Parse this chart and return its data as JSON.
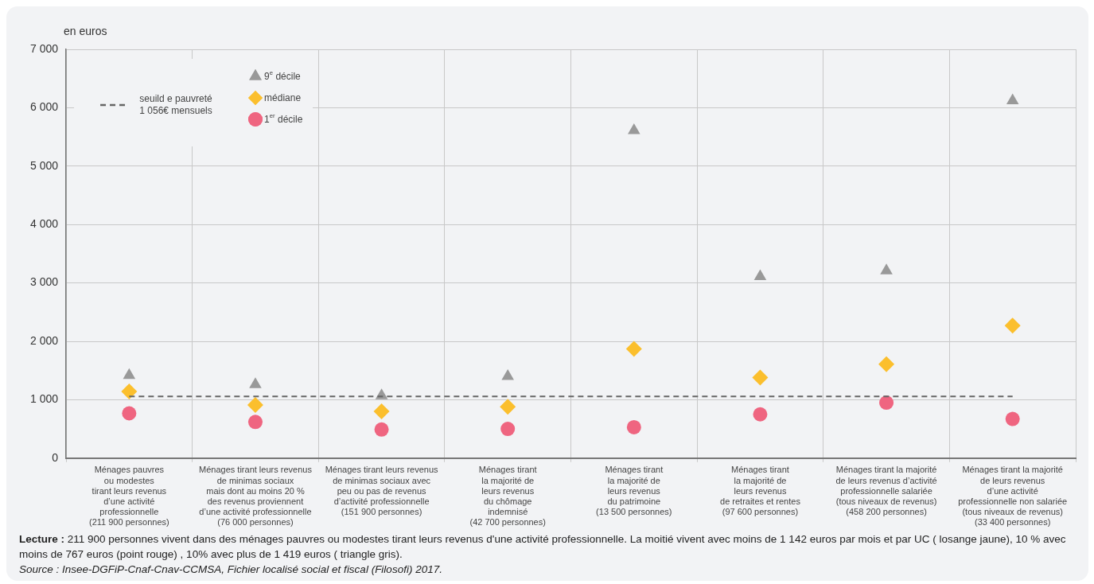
{
  "chart_data": {
    "type": "scatter",
    "ylabel": "en euros",
    "categories": [
      "Ménages pauvres\nou modestes\ntirant leurs revenus\nd’une activité\nprofessionnelle\n(211 900 personnes)",
      "Ménages tirant leurs revenus\nde minimas sociaux\nmais dont au moins 20 %\ndes revenus proviennent\nd’une activité professionnelle\n(76 000 personnes)",
      "Ménages tirant leurs revenus\nde minimas sociaux avec\npeu ou pas de revenus\nd’activité professionnelle\n(151 900 personnes)",
      "Ménages tirant\nla majorité de\nleurs revenus\ndu chômage\nindemnisé\n(42 700 personnes)",
      "Ménages tirant\nla majorité de\nleurs revenus\ndu patrimoine\n(13 500 personnes)",
      "Ménages tirant\nla majorité de\nleurs revenus\nde retraites et rentes\n(97 600 personnes)",
      "Ménages tirant la majorité\nde leurs revenus d’activité\nprofessionnelle salariée\n(tous niveaux de revenus)\n(458 200 personnes)",
      "Ménages tirant la majorité\nde leurs revenus\nd’une activité\nprofessionnelle non salariée\n(tous niveaux de revenus)\n(33 400 personnes)"
    ],
    "series": [
      {
        "name": "9$^{e}$ décile",
        "color": "#999999",
        "marker": "triangle",
        "values": [
          1419,
          1260,
          1070,
          1400,
          5610,
          3110,
          3210,
          6120
        ]
      },
      {
        "name": "médiane",
        "color": "#fbbf2d",
        "marker": "diamond",
        "values": [
          1142,
          910,
          800,
          880,
          1870,
          1380,
          1610,
          2270
        ]
      },
      {
        "name": "1$^{er}$ décile",
        "color": "#ef6580",
        "marker": "circle",
        "values": [
          767,
          620,
          490,
          500,
          530,
          750,
          950,
          670
        ]
      }
    ],
    "ylim": [
      0,
      7000
    ],
    "yticks": [
      0,
      {
        "value": 1000,
        "label": "1 000"
      },
      {
        "value": 2000,
        "label": "2 000"
      },
      {
        "value": 3000,
        "label": "3 000"
      },
      {
        "value": 4000,
        "label": "4 000"
      },
      {
        "value": 5000,
        "label": "5 000"
      },
      {
        "value": 6000,
        "label": "6 000"
      },
      {
        "value": 7000,
        "label": "7 000"
      }
    ],
    "ref_lines": [
      {
        "axis": "y",
        "value": 1056,
        "label": "seuild e pauvreté\n1 056€ mensuels",
        "color": "#666666",
        "line_style": "dashed"
      }
    ],
    "grid": true,
    "legend": "top left",
    "annotations": [
      "Lecture : 211 900 personnes vivent dans des ménages pauvres ou modestes tirant leurs revenus d'une activité professionnelle. La moitié vivent avec moins de 1 142 euros par mois et par UC ( losange jaune), 10 % avec moins de 767  euros (point rouge) , 10% avec plus de 1 419 euros ( triangle gris).",
      "Source : Insee-DGFiP-Cnaf-Cnav-CCMSA, Fichier localisé social et fiscal (Filosofi) 2017."
    ]
  }
}
